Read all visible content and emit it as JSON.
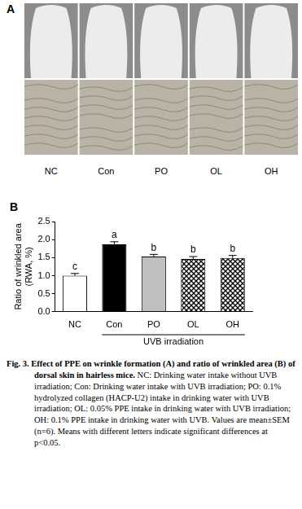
{
  "panel_a": {
    "label": "A",
    "groups": [
      "NC",
      "Con",
      "PO",
      "OL",
      "OH"
    ]
  },
  "chart_data": {
    "type": "bar",
    "panel_label": "B",
    "categories": [
      "NC",
      "Con",
      "PO",
      "OL",
      "OH"
    ],
    "values": [
      1.0,
      1.87,
      1.53,
      1.46,
      1.49
    ],
    "errors": [
      0.06,
      0.07,
      0.06,
      0.07,
      0.07
    ],
    "significance_letters": [
      "c",
      "a",
      "b",
      "b",
      "b"
    ],
    "colors": [
      "#ffffff",
      "#000000",
      "#bfbfbf",
      "#000000",
      "#000000"
    ],
    "y_label": [
      "Ratio of wrinkled area",
      "(RWA, %)"
    ],
    "ylim": [
      0,
      2.5
    ],
    "yticks": [
      {
        "value": 0,
        "label": "0.0"
      },
      {
        "value": 0.5,
        "label": "0.5"
      },
      {
        "value": 1,
        "label": "1.0"
      },
      {
        "value": 1.5,
        "label": "1.5"
      },
      {
        "value": 2,
        "label": "2.0"
      },
      {
        "value": 2.5,
        "label": "2.5"
      }
    ],
    "grid": false,
    "annotations": [
      {
        "text": "UVB irradiation",
        "from": "Con",
        "to": "OH"
      }
    ]
  },
  "caption": {
    "label": "Fig. 3.",
    "title": "Effect of PPE on wrinkle formation (A) and ratio of wrinkled area (B) of dorsal skin in hairless mice.",
    "text": "NC: Drinking water intake without UVB irradiation; Con: Drinking water intake with UVB irradiation; PO: 0.1% hydrolyzed collagen (HACP-U2) intake in drinking water with UVB irradiation; OL: 0.05% PPE intake in drinking water with UVB irradiation; OH: 0.1% PPE intake in drinking water with UVB. Values are mean±SEM (n=6). Means with different letters indicate significant differences at p<0.05."
  }
}
